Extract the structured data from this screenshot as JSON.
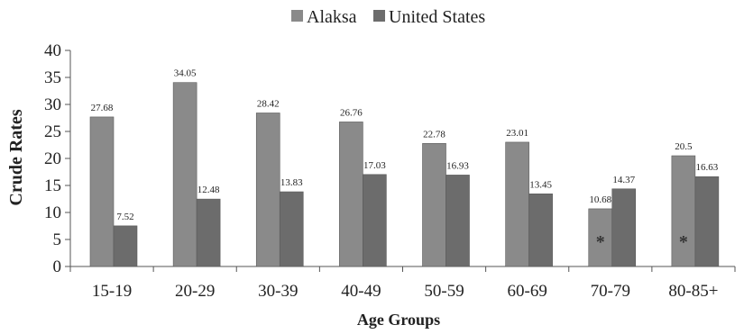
{
  "chart_data": {
    "type": "bar",
    "xlabel": "Age Groups",
    "ylabel": "Crude Rates",
    "ylim": [
      0,
      40
    ],
    "yticks": [
      0,
      5,
      10,
      15,
      20,
      25,
      30,
      35,
      40
    ],
    "grid": false,
    "legend_position": "top-center",
    "categories": [
      "15-19",
      "20-29",
      "30-39",
      "40-49",
      "50-59",
      "60-69",
      "70-79",
      "80-85+"
    ],
    "series": [
      {
        "name": "Alaksa",
        "color": "#8a8a8a",
        "values": [
          27.68,
          34.05,
          28.42,
          26.76,
          22.78,
          23.01,
          10.68,
          20.5
        ],
        "labels": [
          "27.68",
          "34.05",
          "28.42",
          "26.76",
          "22.78",
          "23.01",
          "10.68",
          "20.5"
        ]
      },
      {
        "name": "United States",
        "color": "#6c6c6c",
        "values": [
          7.52,
          12.48,
          13.83,
          17.03,
          16.93,
          13.45,
          14.37,
          16.63
        ],
        "labels": [
          "7.52",
          "12.48",
          "13.83",
          "17.03",
          "16.93",
          "13.45",
          "14.37",
          "16.63"
        ]
      }
    ],
    "annotations": [
      {
        "category": "70-79",
        "series": "Alaksa",
        "text": "*"
      },
      {
        "category": "80-85+",
        "series": "Alaksa",
        "text": "*"
      }
    ]
  }
}
